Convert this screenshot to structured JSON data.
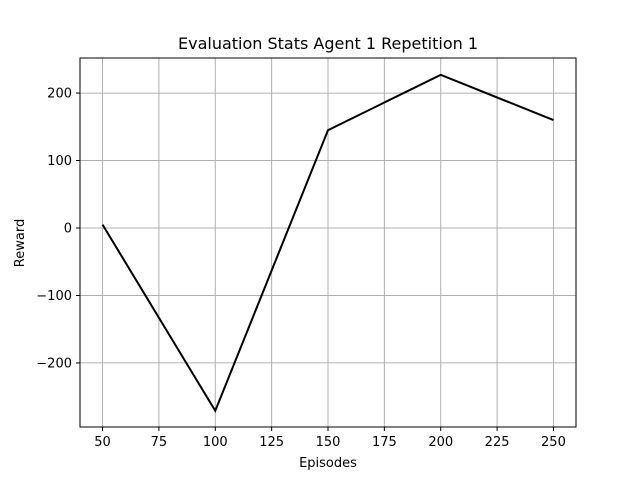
{
  "chart_data": {
    "type": "line",
    "title": "Evaluation Stats Agent 1 Repetition 1",
    "xlabel": "Episodes",
    "ylabel": "Reward",
    "xlim": [
      40,
      260
    ],
    "ylim": [
      -295,
      252
    ],
    "grid": true,
    "xticks": [
      50,
      75,
      100,
      125,
      150,
      175,
      200,
      225,
      250
    ],
    "yticks": [
      -200,
      -100,
      0,
      100,
      200
    ],
    "xtick_labels": [
      "50",
      "75",
      "100",
      "125",
      "150",
      "175",
      "200",
      "225",
      "250"
    ],
    "ytick_labels": [
      "−200",
      "−100",
      "0",
      "100",
      "200"
    ],
    "series": [
      {
        "color": "#000000",
        "x": [
          50,
          100,
          150,
          200,
          250
        ],
        "y": [
          5,
          -271,
          145,
          227,
          160
        ]
      }
    ]
  }
}
